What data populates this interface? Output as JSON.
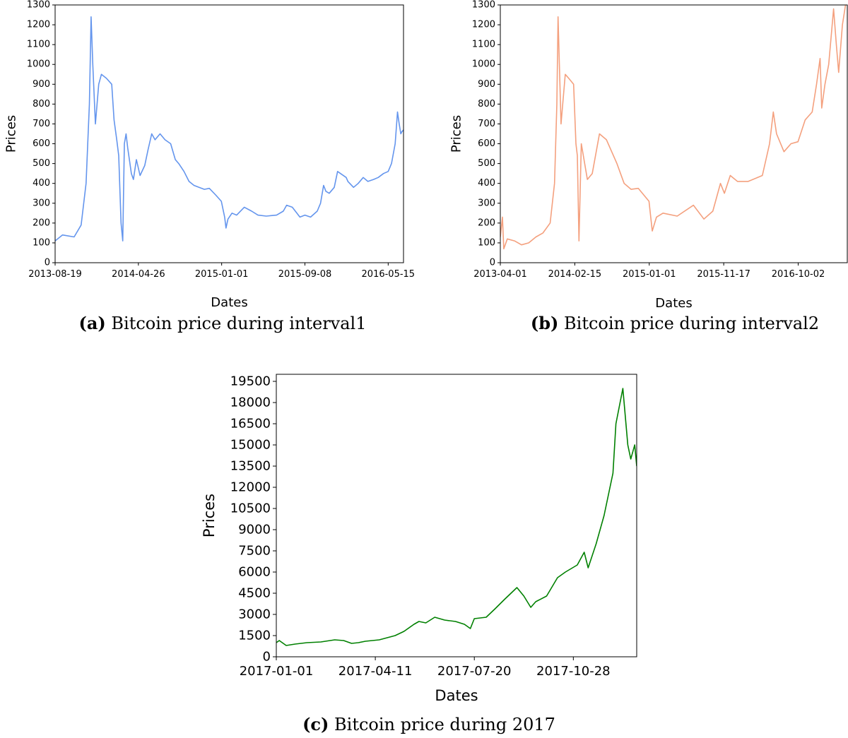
{
  "chart_data": [
    {
      "id": "a",
      "type": "line",
      "caption_tag": "(a)",
      "caption": "Bitcoin price during interval1",
      "xlabel": "Dates",
      "ylabel": "Prices",
      "color": "#6495ed",
      "x_range": [
        "2013-08-19",
        "2016-06-30"
      ],
      "ylim": [
        0,
        1300
      ],
      "yticks": [
        0,
        100,
        200,
        300,
        400,
        500,
        600,
        700,
        800,
        900,
        1000,
        1100,
        1200,
        1300
      ],
      "xticks": [
        "2013-08-19",
        "2014-04-26",
        "2015-01-01",
        "2015-09-08",
        "2016-05-15"
      ],
      "grid": false,
      "series": [
        {
          "x": [
            "2013-08-19",
            "2013-09-10",
            "2013-10-15",
            "2013-11-05",
            "2013-11-20",
            "2013-11-30",
            "2013-12-05",
            "2013-12-10",
            "2013-12-18",
            "2013-12-28",
            "2014-01-05",
            "2014-01-20",
            "2014-02-05",
            "2014-02-12",
            "2014-02-20",
            "2014-02-26",
            "2014-03-05",
            "2014-03-10",
            "2014-03-15",
            "2014-03-20",
            "2014-03-25",
            "2014-04-05",
            "2014-04-11",
            "2014-04-20",
            "2014-05-01",
            "2014-05-15",
            "2014-05-25",
            "2014-06-05",
            "2014-06-15",
            "2014-06-30",
            "2014-07-15",
            "2014-08-01",
            "2014-08-15",
            "2014-08-25",
            "2014-09-10",
            "2014-09-25",
            "2014-10-10",
            "2014-10-25",
            "2014-11-10",
            "2014-11-25",
            "2014-12-15",
            "2014-12-31",
            "2015-01-10",
            "2015-01-14",
            "2015-01-20",
            "2015-02-01",
            "2015-02-15",
            "2015-03-10",
            "2015-04-01",
            "2015-04-20",
            "2015-05-15",
            "2015-06-15",
            "2015-07-05",
            "2015-07-15",
            "2015-08-01",
            "2015-08-24",
            "2015-09-08",
            "2015-09-25",
            "2015-10-15",
            "2015-10-25",
            "2015-11-03",
            "2015-11-10",
            "2015-11-20",
            "2015-12-05",
            "2015-12-15",
            "2016-01-10",
            "2016-01-15",
            "2016-02-01",
            "2016-02-15",
            "2016-03-01",
            "2016-03-15",
            "2016-04-01",
            "2016-04-15",
            "2016-05-01",
            "2016-05-15",
            "2016-05-25",
            "2016-06-05",
            "2016-06-12",
            "2016-06-17",
            "2016-06-22",
            "2016-06-25",
            "2016-06-30"
          ],
          "y": [
            110,
            140,
            130,
            190,
            400,
            800,
            1240,
            1000,
            700,
            900,
            950,
            930,
            900,
            720,
            620,
            540,
            200,
            110,
            600,
            650,
            580,
            450,
            420,
            520,
            440,
            490,
            570,
            650,
            620,
            650,
            620,
            600,
            520,
            500,
            460,
            410,
            390,
            380,
            370,
            375,
            340,
            310,
            230,
            175,
            220,
            250,
            240,
            280,
            260,
            240,
            235,
            240,
            260,
            290,
            280,
            230,
            240,
            230,
            260,
            300,
            390,
            360,
            350,
            380,
            460,
            430,
            410,
            380,
            400,
            430,
            410,
            420,
            430,
            450,
            460,
            500,
            600,
            760,
            700,
            650,
            660,
            670
          ]
        }
      ]
    },
    {
      "id": "b",
      "type": "line",
      "caption_tag": "(b)",
      "caption": "Bitcoin price during interval2",
      "xlabel": "Dates",
      "ylabel": "Prices",
      "color": "#f4a07e",
      "x_range": [
        "2013-04-01",
        "2017-05-01"
      ],
      "ylim": [
        0,
        1300
      ],
      "yticks": [
        0,
        100,
        200,
        300,
        400,
        500,
        600,
        700,
        800,
        900,
        1000,
        1100,
        1200,
        1300
      ],
      "xticks": [
        "2013-04-01",
        "2014-02-15",
        "2015-01-01",
        "2015-11-17",
        "2016-10-02"
      ],
      "grid": false,
      "series": [
        {
          "x": [
            "2013-04-01",
            "2013-04-10",
            "2013-04-16",
            "2013-05-01",
            "2013-06-01",
            "2013-07-01",
            "2013-08-01",
            "2013-09-01",
            "2013-10-01",
            "2013-11-01",
            "2013-11-20",
            "2013-11-30",
            "2013-12-05",
            "2013-12-18",
            "2014-01-05",
            "2014-01-20",
            "2014-02-10",
            "2014-02-20",
            "2014-02-26",
            "2014-03-05",
            "2014-03-15",
            "2014-04-10",
            "2014-05-01",
            "2014-06-01",
            "2014-07-01",
            "2014-08-15",
            "2014-09-15",
            "2014-10-15",
            "2014-11-15",
            "2014-12-31",
            "2015-01-14",
            "2015-02-01",
            "2015-03-01",
            "2015-05-01",
            "2015-07-10",
            "2015-08-24",
            "2015-10-01",
            "2015-11-03",
            "2015-11-20",
            "2015-12-15",
            "2016-01-15",
            "2016-03-01",
            "2016-05-01",
            "2016-06-01",
            "2016-06-17",
            "2016-07-01",
            "2016-08-02",
            "2016-09-01",
            "2016-10-01",
            "2016-11-01",
            "2016-12-01",
            "2016-12-20",
            "2017-01-04",
            "2017-01-11",
            "2017-01-25",
            "2017-02-10",
            "2017-03-03",
            "2017-03-15",
            "2017-03-25",
            "2017-04-10",
            "2017-04-30"
          ],
          "y": [
            130,
            230,
            70,
            120,
            110,
            90,
            100,
            130,
            150,
            200,
            400,
            800,
            1240,
            700,
            950,
            930,
            900,
            600,
            540,
            110,
            600,
            420,
            450,
            650,
            620,
            500,
            400,
            370,
            375,
            310,
            160,
            230,
            250,
            235,
            290,
            220,
            260,
            400,
            350,
            440,
            410,
            410,
            440,
            600,
            760,
            650,
            560,
            600,
            610,
            720,
            760,
            900,
            1030,
            780,
            900,
            1000,
            1280,
            1100,
            960,
            1200,
            1350
          ]
        }
      ]
    },
    {
      "id": "c",
      "type": "line",
      "caption_tag": "(c)",
      "caption": "Bitcoin price during 2017",
      "xlabel": "Dates",
      "ylabel": "Prices",
      "color": "#008000",
      "x_range": [
        "2017-01-01",
        "2017-12-31"
      ],
      "ylim": [
        0,
        20000
      ],
      "yticks": [
        0,
        1500,
        3000,
        4500,
        6000,
        7500,
        9000,
        10500,
        12000,
        13500,
        15000,
        16500,
        18000,
        19500
      ],
      "xticks": [
        "2017-01-01",
        "2017-04-11",
        "2017-07-20",
        "2017-10-28"
      ],
      "grid": false,
      "series": [
        {
          "x": [
            "2017-01-01",
            "2017-01-04",
            "2017-01-11",
            "2017-01-20",
            "2017-02-01",
            "2017-02-15",
            "2017-03-01",
            "2017-03-10",
            "2017-03-18",
            "2017-03-25",
            "2017-04-01",
            "2017-04-15",
            "2017-05-01",
            "2017-05-10",
            "2017-05-20",
            "2017-05-25",
            "2017-06-01",
            "2017-06-10",
            "2017-06-20",
            "2017-07-01",
            "2017-07-10",
            "2017-07-16",
            "2017-07-20",
            "2017-08-01",
            "2017-08-10",
            "2017-08-20",
            "2017-09-01",
            "2017-09-08",
            "2017-09-15",
            "2017-09-20",
            "2017-10-01",
            "2017-10-12",
            "2017-10-20",
            "2017-11-01",
            "2017-11-08",
            "2017-11-12",
            "2017-11-20",
            "2017-11-28",
            "2017-12-01",
            "2017-12-07",
            "2017-12-10",
            "2017-12-17",
            "2017-12-22",
            "2017-12-25",
            "2017-12-29",
            "2017-12-31"
          ],
          "y": [
            1000,
            1150,
            800,
            900,
            1000,
            1050,
            1200,
            1150,
            950,
            1000,
            1100,
            1200,
            1500,
            1800,
            2300,
            2500,
            2400,
            2800,
            2600,
            2500,
            2300,
            2000,
            2700,
            2800,
            3400,
            4100,
            4900,
            4300,
            3500,
            3900,
            4300,
            5600,
            6000,
            6500,
            7400,
            6300,
            8000,
            10000,
            11000,
            13000,
            16500,
            19000,
            15000,
            14000,
            15000,
            13500
          ]
        }
      ]
    }
  ]
}
